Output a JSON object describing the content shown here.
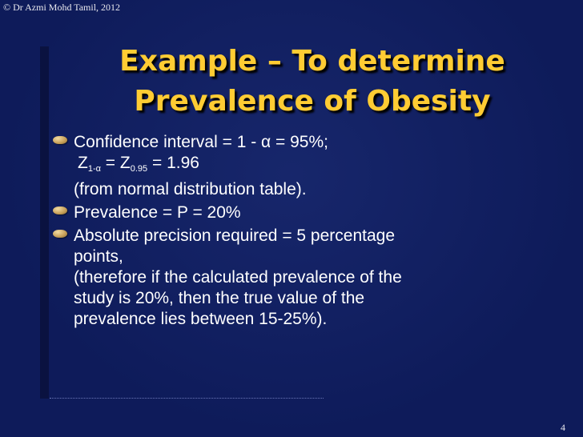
{
  "header": {
    "copyright": "© Dr Azmi Mohd Tamil, 2012"
  },
  "slide": {
    "title_line1": "Example – To determine",
    "title_line2": "Prevalence of Obesity",
    "bullets": [
      {
        "icon": "bullet-icon",
        "line1": "Confidence interval = 1 - α  = 95%;",
        "z_label_a": "Z",
        "z_sub_a": "1-α",
        "z_eq": " = Z",
        "z_sub_b": "0.95",
        "z_value": " = 1.96",
        "line3": "(from normal distribution table)."
      },
      {
        "icon": "bullet-icon",
        "line1": "Prevalence = P = 20%"
      },
      {
        "icon": "bullet-icon",
        "line1": "Absolute precision required = 5 percentage",
        "line2": "points,",
        "line3": "(therefore if the calculated prevalence of the",
        "line4": "study is 20%, then the true value of the",
        "line5": "prevalence lies between 15-25%)."
      }
    ]
  },
  "footer": {
    "page_number": "4"
  },
  "colors": {
    "background": "#0e1b5a",
    "title": "#ffcc33",
    "text": "#ffffff"
  }
}
